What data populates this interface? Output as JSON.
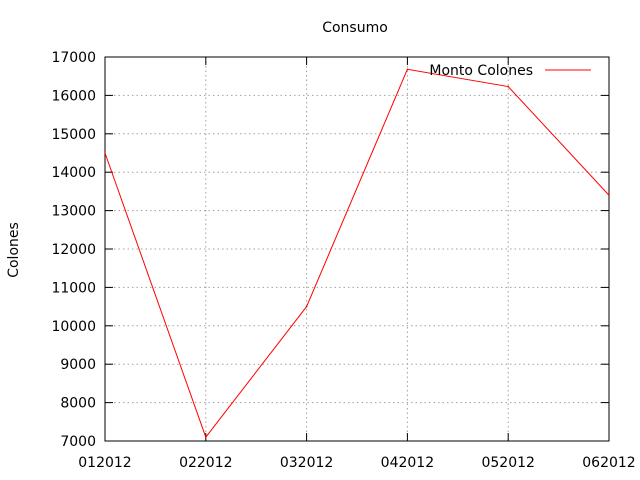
{
  "chart_data": {
    "type": "line",
    "title": "Consumo",
    "xlabel": "",
    "ylabel": "Colones",
    "categories": [
      "012012",
      "022012",
      "032012",
      "042012",
      "052012",
      "062012"
    ],
    "series": [
      {
        "name": "Monto Colones",
        "color": "#ff0000",
        "values": [
          14500,
          7100,
          10500,
          16680,
          16230,
          13400
        ]
      }
    ],
    "ylim": [
      7000,
      17000
    ],
    "yticks": [
      7000,
      8000,
      9000,
      10000,
      11000,
      12000,
      13000,
      14000,
      15000,
      16000,
      17000
    ],
    "grid": true,
    "legend_position": "top-right"
  }
}
